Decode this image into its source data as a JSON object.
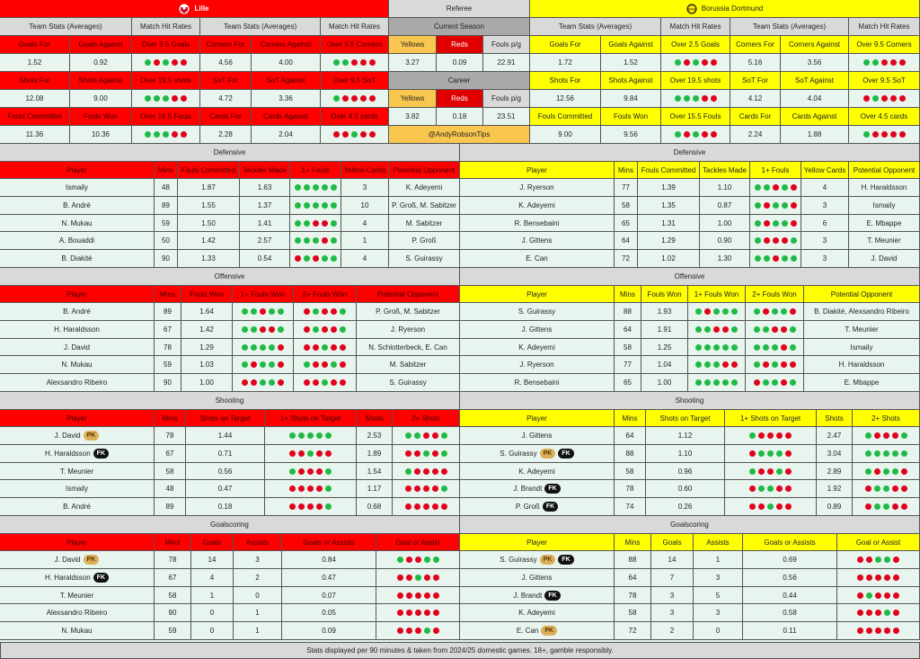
{
  "lille": {
    "name": "Lille",
    "headers": [
      "Team Stats (Averages)",
      "Match Hit Rates",
      "Team Stats (Averages)",
      "Match Hit Rates"
    ],
    "blocks": [
      {
        "labels": [
          "Goals For",
          "Goals Against",
          "Over 2.5 Goals",
          "Corners For",
          "Corners Against",
          "Over 9.5 Corners"
        ],
        "values": [
          "1.52",
          "0.92",
          {
            "dots": "GRGRR"
          },
          "4.56",
          "4.00",
          {
            "dots": "GGRRR"
          }
        ]
      },
      {
        "labels": [
          "Shots For",
          "Shots Against",
          "Over 19.5 shots",
          "SoT For",
          "SoT Against",
          "Over 9.5 SoT"
        ],
        "values": [
          "12.08",
          "9.00",
          {
            "dots": "GGGRR"
          },
          "4.72",
          "3.36",
          {
            "dots": "GRRRR"
          }
        ]
      },
      {
        "labels": [
          "Fouls Committed",
          "Fouls Won",
          "Over 15.5 Fouls",
          "Cards For",
          "Cards Against",
          "Over 4.5 cards"
        ],
        "values": [
          "11.36",
          "10.36",
          {
            "dots": "GGGRR"
          },
          "2.28",
          "2.04",
          {
            "dots": "RRGRR"
          }
        ]
      }
    ]
  },
  "bvb": {
    "name": "Borussia Dortmund",
    "headers": [
      "Team Stats (Averages)",
      "Match Hit Rates",
      "Team Stats (Averages)",
      "Match Hit Rates"
    ],
    "blocks": [
      {
        "labels": [
          "Goals For",
          "Goals Against",
          "Over 2.5 Goals",
          "Corners For",
          "Corners Against",
          "Over 9.5 Corners"
        ],
        "values": [
          "1.72",
          "1.52",
          {
            "dots": "GRGRR"
          },
          "5.16",
          "3.56",
          {
            "dots": "GGRRR"
          }
        ]
      },
      {
        "labels": [
          "Shots For",
          "Shots Against",
          "Over 19.5 shots",
          "SoT For",
          "SoT Against",
          "Over 9.5 SoT"
        ],
        "values": [
          "12.56",
          "9.84",
          {
            "dots": "GGGRR"
          },
          "4.12",
          "4.04",
          {
            "dots": "RGRRR"
          }
        ]
      },
      {
        "labels": [
          "Fouls Committed",
          "Fouls Won",
          "Over 15.5 Fouls",
          "Cards For",
          "Cards Against",
          "Over 4.5 cards"
        ],
        "values": [
          "9.00",
          "9.56",
          {
            "dots": "GRGRR"
          },
          "2.24",
          "1.88",
          {
            "dots": "GRRRR"
          }
        ]
      }
    ]
  },
  "referee": {
    "title": "Referee",
    "current_label": "Current Season",
    "labels": [
      "Yellows",
      "Reds",
      "Fouls p/g"
    ],
    "current": [
      "3.27",
      "0.09",
      "22.91"
    ],
    "career_label": "Career",
    "career": [
      "3.82",
      "0.18",
      "23.51"
    ],
    "handle": "@AndyRobsonTips"
  },
  "colors": {
    "lille": "#ff0000",
    "bvb": "#ffff00",
    "hit": "#1fba45",
    "miss": "#e3001b"
  },
  "sections": [
    {
      "title": "Defensive",
      "lille": {
        "columns": [
          "Player",
          "Mins",
          "Fouls Committed",
          "Tackles Made",
          "1+ Fouls",
          "Yellow Cards",
          "Potential Opponent"
        ],
        "rows": [
          [
            {
              "name": "Ismaily"
            },
            "48",
            "1.87",
            "1.63",
            {
              "dots": "GGGGG"
            },
            "3",
            "K. Adeyemi"
          ],
          [
            {
              "name": "B. André"
            },
            "89",
            "1.55",
            "1.37",
            {
              "dots": "GGGGG"
            },
            "10",
            "P. Groß, M. Sabitzer"
          ],
          [
            {
              "name": "N. Mukau"
            },
            "59",
            "1.50",
            "1.41",
            {
              "dots": "GGRRG"
            },
            "4",
            "M. Sabitzer"
          ],
          [
            {
              "name": "A. Bouaddi"
            },
            "50",
            "1.42",
            "2.57",
            {
              "dots": "GGGRG"
            },
            "1",
            "P. Groß"
          ],
          [
            {
              "name": "B. Diakité"
            },
            "90",
            "1.33",
            "0.54",
            {
              "dots": "RGRGG"
            },
            "4",
            "S. Guirassy"
          ]
        ]
      },
      "bvb": {
        "columns": [
          "Player",
          "Mins",
          "Fouls Committed",
          "Tackles Made",
          "1+ Fouls",
          "Yellow Cards",
          "Potential Opponent"
        ],
        "rows": [
          [
            {
              "name": "J. Ryerson"
            },
            "77",
            "1.39",
            "1.10",
            {
              "dots": "GGRGR"
            },
            "4",
            "H. Haraldsson"
          ],
          [
            {
              "name": "K. Adeyemi"
            },
            "58",
            "1.35",
            "0.87",
            {
              "dots": "GRGGR"
            },
            "3",
            "Ismaily"
          ],
          [
            {
              "name": "R. Bensebaini"
            },
            "65",
            "1.31",
            "1.00",
            {
              "dots": "GRGGR"
            },
            "6",
            "E. Mbappe"
          ],
          [
            {
              "name": "J. Gittens"
            },
            "64",
            "1.29",
            "0.90",
            {
              "dots": "GRRRG"
            },
            "3",
            "T. Meunier"
          ],
          [
            {
              "name": "E. Can"
            },
            "72",
            "1.02",
            "1.30",
            {
              "dots": "GGRGG"
            },
            "3",
            "J. David"
          ]
        ]
      }
    },
    {
      "title": "Offensive",
      "lille": {
        "columns": [
          "Player",
          "Mins",
          "Fouls Won",
          "1+ Fouls Won",
          "2+ Fouls Won",
          "Potential Opponent"
        ],
        "rows": [
          [
            {
              "name": "B. André"
            },
            "89",
            "1.64",
            {
              "dots": "GGRGG"
            },
            {
              "dots": "RGRRG"
            },
            "P. Groß, M. Sabitzer"
          ],
          [
            {
              "name": "H. Haraldsson"
            },
            "67",
            "1.42",
            {
              "dots": "GGRRG"
            },
            {
              "dots": "RGRRG"
            },
            "J. Ryerson"
          ],
          [
            {
              "name": "J. David"
            },
            "78",
            "1.29",
            {
              "dots": "GGGGR"
            },
            {
              "dots": "RRGRR"
            },
            "N. Schlotterbeck, E. Can"
          ],
          [
            {
              "name": "N. Mukau"
            },
            "59",
            "1.03",
            {
              "dots": "GRGGR"
            },
            {
              "dots": "GRRGR"
            },
            "M. Sabitzer"
          ],
          [
            {
              "name": "Alexsandro Ribeiro"
            },
            "90",
            "1.00",
            {
              "dots": "RRGGR"
            },
            {
              "dots": "RRGRR"
            },
            "S. Guirassy"
          ]
        ]
      },
      "bvb": {
        "columns": [
          "Player",
          "Mins",
          "Fouls Won",
          "1+ Fouls Won",
          "2+ Fouls Won",
          "Potential Opponent"
        ],
        "rows": [
          [
            {
              "name": "S. Guirassy"
            },
            "88",
            "1.93",
            {
              "dots": "GRGGG"
            },
            {
              "dots": "GRGGR"
            },
            "B. Diakité, Alexsandro Ribeiro"
          ],
          [
            {
              "name": "J. Gittens"
            },
            "64",
            "1.91",
            {
              "dots": "GGRRG"
            },
            {
              "dots": "GGRRG"
            },
            "T. Meunier"
          ],
          [
            {
              "name": "K. Adeyemi"
            },
            "58",
            "1.25",
            {
              "dots": "GGGGG"
            },
            {
              "dots": "GGGRG"
            },
            "Ismaily"
          ],
          [
            {
              "name": "J. Ryerson"
            },
            "77",
            "1.04",
            {
              "dots": "GGGRR"
            },
            {
              "dots": "GRGRR"
            },
            "H. Haraldsson"
          ],
          [
            {
              "name": "R. Bensebaini"
            },
            "65",
            "1.00",
            {
              "dots": "GGGGG"
            },
            {
              "dots": "RGGRG"
            },
            "E. Mbappe"
          ]
        ]
      }
    },
    {
      "title": "Shooting",
      "lille": {
        "columns": [
          "Player",
          "Mins",
          "Shots on Target",
          "1+ Shots on Target",
          "Shots",
          "2+ Shots"
        ],
        "rows": [
          [
            {
              "name": "J. David",
              "badges": [
                "PK"
              ]
            },
            "78",
            "1.44",
            {
              "dots": "GGGGG"
            },
            "2.53",
            {
              "dots": "GGRRG"
            }
          ],
          [
            {
              "name": "H. Haraldsson",
              "badges": [
                "FK"
              ]
            },
            "67",
            "0.71",
            {
              "dots": "RRGRR"
            },
            "1.89",
            {
              "dots": "RRGRG"
            }
          ],
          [
            {
              "name": "T. Meunier"
            },
            "58",
            "0.56",
            {
              "dots": "GRRRG"
            },
            "1.54",
            {
              "dots": "GRRRR"
            }
          ],
          [
            {
              "name": "Ismaily"
            },
            "48",
            "0.47",
            {
              "dots": "RRRRG"
            },
            "1.17",
            {
              "dots": "RRRRG"
            }
          ],
          [
            {
              "name": "B. André"
            },
            "89",
            "0.18",
            {
              "dots": "RRRRG"
            },
            "0.68",
            {
              "dots": "RRRRR"
            }
          ]
        ]
      },
      "bvb": {
        "columns": [
          "Player",
          "Mins",
          "Shots on Target",
          "1+ Shots on Target",
          "Shots",
          "2+ Shots"
        ],
        "rows": [
          [
            {
              "name": "J. Gittens"
            },
            "64",
            "1.12",
            {
              "dots": "GRRRR"
            },
            "2.47",
            {
              "dots": "GRRRG"
            }
          ],
          [
            {
              "name": "S. Guirassy",
              "badges": [
                "PK",
                "FK"
              ]
            },
            "88",
            "1.10",
            {
              "dots": "RGGGR"
            },
            "3.04",
            {
              "dots": "GGGGG"
            }
          ],
          [
            {
              "name": "K. Adeyemi"
            },
            "58",
            "0.96",
            {
              "dots": "GRRGR"
            },
            "2.89",
            {
              "dots": "GRGGR"
            }
          ],
          [
            {
              "name": "J. Brandt",
              "badges": [
                "FK"
              ]
            },
            "78",
            "0.60",
            {
              "dots": "RGGRR"
            },
            "1.92",
            {
              "dots": "RGGRR"
            }
          ],
          [
            {
              "name": "P. Groß",
              "badges": [
                "FK"
              ]
            },
            "74",
            "0.26",
            {
              "dots": "RRGRR"
            },
            "0.89",
            {
              "dots": "RGGRR"
            }
          ]
        ]
      }
    },
    {
      "title": "Goalscoring",
      "lille": {
        "columns": [
          "Player",
          "Mins",
          "Goals",
          "Assists",
          "Goals or Assists",
          "Goal or Assist"
        ],
        "rows": [
          [
            {
              "name": "J. David",
              "badges": [
                "PK"
              ]
            },
            "78",
            "14",
            "3",
            "0.84",
            {
              "dots": "GRRGG"
            }
          ],
          [
            {
              "name": "H. Haraldsson",
              "badges": [
                "FK"
              ]
            },
            "67",
            "4",
            "2",
            "0.47",
            {
              "dots": "RRGRR"
            }
          ],
          [
            {
              "name": "T. Meunier"
            },
            "58",
            "1",
            "0",
            "0.07",
            {
              "dots": "RRRRR"
            }
          ],
          [
            {
              "name": "Alexsandro Ribeiro"
            },
            "90",
            "0",
            "1",
            "0.05",
            {
              "dots": "RRRRR"
            }
          ],
          [
            {
              "name": "N. Mukau"
            },
            "59",
            "0",
            "1",
            "0.09",
            {
              "dots": "RRRGR"
            }
          ]
        ]
      },
      "bvb": {
        "columns": [
          "Player",
          "Mins",
          "Goals",
          "Assists",
          "Goals or Assists",
          "Goal or Assist"
        ],
        "rows": [
          [
            {
              "name": "S. Guirassy",
              "badges": [
                "PK",
                "FK"
              ]
            },
            "88",
            "14",
            "1",
            "0.69",
            {
              "dots": "RRGGR"
            }
          ],
          [
            {
              "name": "J. Gittens"
            },
            "64",
            "7",
            "3",
            "0.56",
            {
              "dots": "RRRRR"
            }
          ],
          [
            {
              "name": "J. Brandt",
              "badges": [
                "FK"
              ]
            },
            "78",
            "3",
            "5",
            "0.44",
            {
              "dots": "RGRRR"
            }
          ],
          [
            {
              "name": "K. Adeyemi"
            },
            "58",
            "3",
            "3",
            "0.58",
            {
              "dots": "RRRGR"
            }
          ],
          [
            {
              "name": "E. Can",
              "badges": [
                "PK"
              ]
            },
            "72",
            "2",
            "0",
            "0.11",
            {
              "dots": "RRRRR"
            }
          ]
        ]
      }
    }
  ],
  "footer": "Stats displayed per 90 minutes & taken from 2024/25 domestic games. 18+, gamble responsibly."
}
